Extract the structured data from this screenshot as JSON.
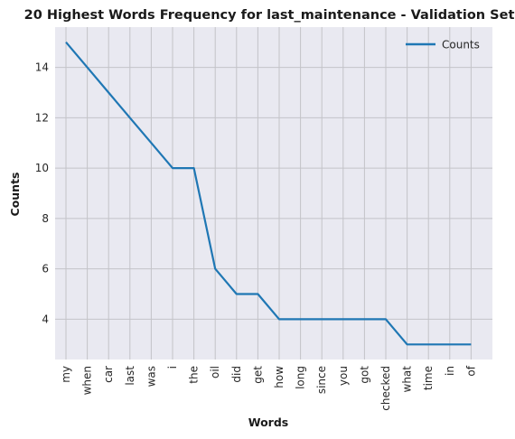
{
  "chart_data": {
    "type": "line",
    "title": "20 Highest Words Frequency for last_maintenance - Validation Set",
    "xlabel": "Words",
    "ylabel": "Counts",
    "categories": [
      "my",
      "when",
      "car",
      "last",
      "was",
      "i",
      "the",
      "oil",
      "did",
      "get",
      "how",
      "long",
      "since",
      "you",
      "got",
      "checked",
      "what",
      "time",
      "in",
      "of"
    ],
    "series": [
      {
        "name": "Counts",
        "values": [
          15,
          14,
          13,
          12,
          11,
          10,
          10,
          6,
          5,
          5,
          4,
          4,
          4,
          4,
          4,
          4,
          3,
          3,
          3,
          3
        ]
      }
    ],
    "yticks": [
      4,
      6,
      8,
      10,
      12,
      14
    ],
    "ylim": [
      2.4,
      15.6
    ],
    "grid": true,
    "legend": "top-right",
    "colors": {
      "line": "#1f77b4",
      "background": "#e9e9f1",
      "grid": "#c3c3c8"
    }
  }
}
